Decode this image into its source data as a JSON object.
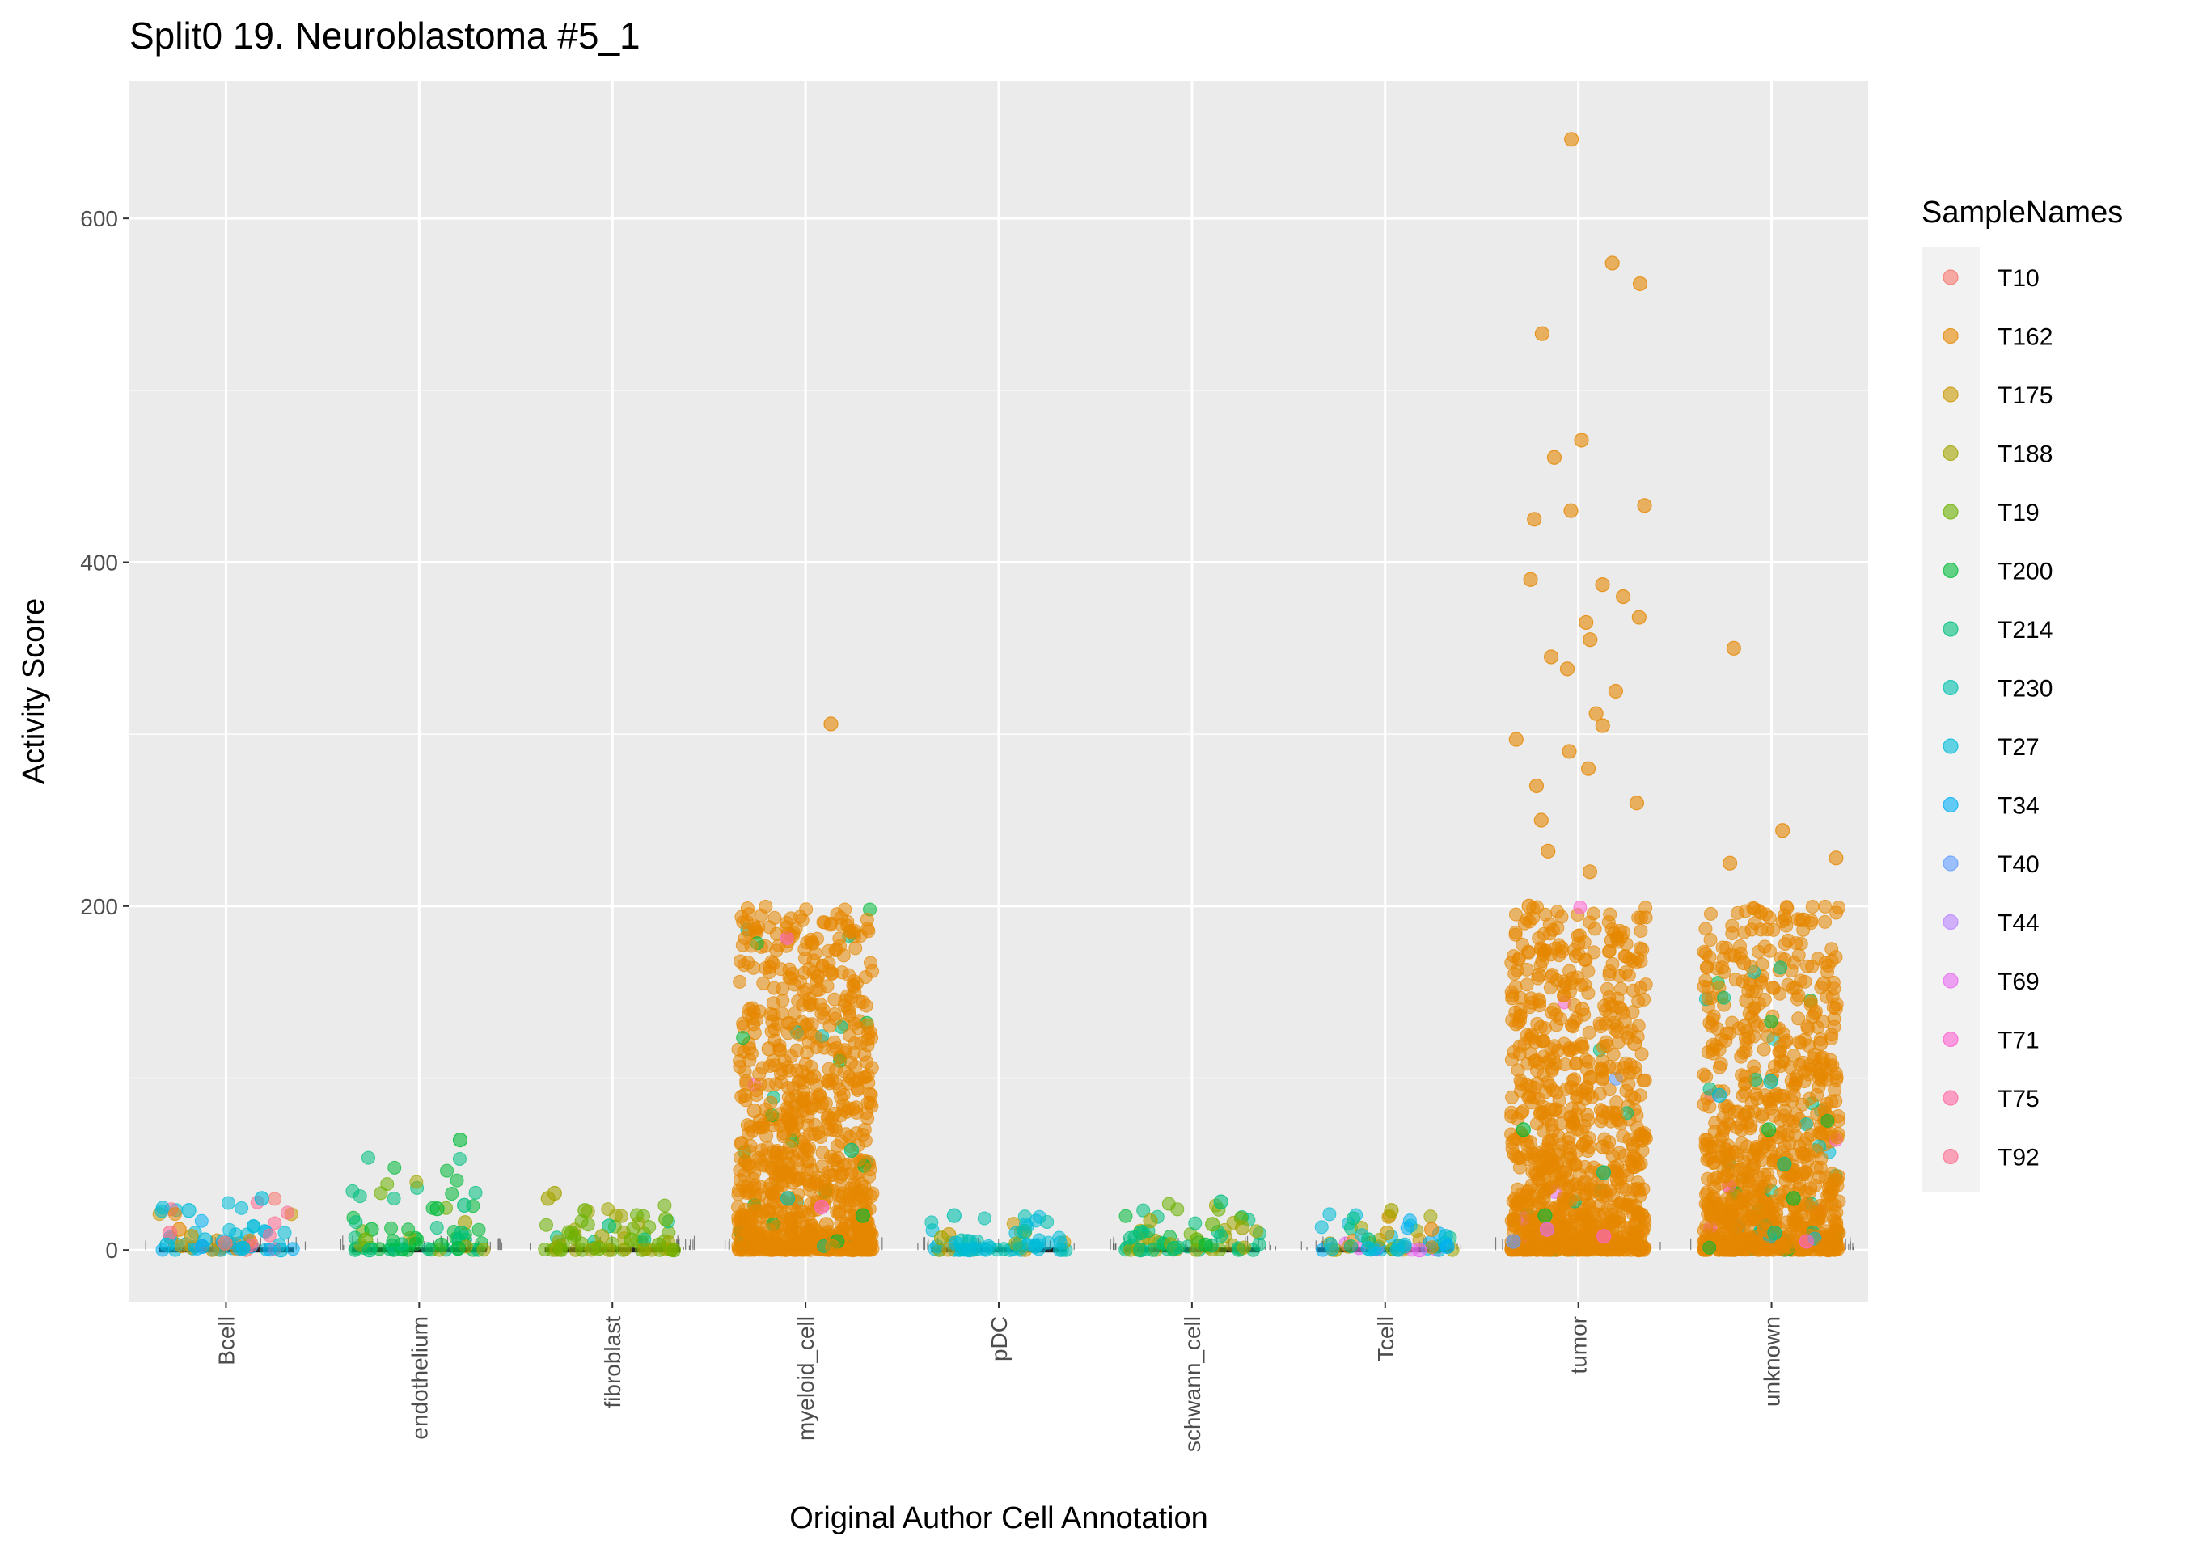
{
  "chart_data": {
    "type": "scatter",
    "title": "Split0 19. Neuroblastoma #5_1",
    "xlabel": "Original Author Cell Annotation",
    "ylabel": "Activity Score",
    "categories": [
      "Bcell",
      "endothelium",
      "fibroblast",
      "myeloid_cell",
      "pDC",
      "schwann_cell",
      "Tcell",
      "tumor",
      "unknown"
    ],
    "ylim": [
      -30,
      680
    ],
    "yticks": [
      0,
      200,
      400,
      600
    ],
    "grid": true,
    "legend": {
      "title": "SampleNames",
      "position": "right",
      "entries": [
        {
          "name": "T10",
          "color": "#F8766D"
        },
        {
          "name": "T162",
          "color": "#E58700"
        },
        {
          "name": "T175",
          "color": "#C99800"
        },
        {
          "name": "T188",
          "color": "#A3A500"
        },
        {
          "name": "T19",
          "color": "#6BB100"
        },
        {
          "name": "T200",
          "color": "#00BA38"
        },
        {
          "name": "T214",
          "color": "#00BF7D"
        },
        {
          "name": "T230",
          "color": "#00C0AF"
        },
        {
          "name": "T27",
          "color": "#00BCD8"
        },
        {
          "name": "T34",
          "color": "#00B0F6"
        },
        {
          "name": "T40",
          "color": "#619CFF"
        },
        {
          "name": "T44",
          "color": "#B983FF"
        },
        {
          "name": "T69",
          "color": "#E76BF3"
        },
        {
          "name": "T71",
          "color": "#FD61D1"
        },
        {
          "name": "T75",
          "color": "#FF67A4"
        },
        {
          "name": "T92",
          "color": "#FF6C91"
        }
      ]
    },
    "series": [
      {
        "category": "Bcell",
        "points": [
          {
            "y": 30,
            "sample": "T27"
          },
          {
            "y": 23,
            "sample": "T27"
          },
          {
            "y": 12,
            "sample": "T162"
          },
          {
            "y": 10,
            "sample": "T92"
          },
          {
            "y": 8,
            "sample": "T175"
          },
          {
            "y": 6,
            "sample": "T27"
          },
          {
            "y": 5,
            "sample": "T34"
          },
          {
            "y": 4,
            "sample": "T10"
          },
          {
            "y": 3,
            "sample": "T27"
          },
          {
            "y": 2,
            "sample": "T34"
          },
          {
            "y": 1,
            "sample": "T27"
          },
          {
            "y": 0,
            "sample": "T27"
          }
        ]
      },
      {
        "category": "endothelium",
        "points": [
          {
            "y": 64,
            "sample": "T200"
          },
          {
            "y": 26,
            "sample": "T214"
          },
          {
            "y": 24,
            "sample": "T200"
          },
          {
            "y": 16,
            "sample": "T188"
          },
          {
            "y": 12,
            "sample": "T200"
          },
          {
            "y": 10,
            "sample": "T214"
          },
          {
            "y": 6,
            "sample": "T19"
          },
          {
            "y": 3,
            "sample": "T200"
          },
          {
            "y": 1,
            "sample": "T200"
          },
          {
            "y": 0,
            "sample": "T214"
          }
        ]
      },
      {
        "category": "fibroblast",
        "points": [
          {
            "y": 33,
            "sample": "T188"
          },
          {
            "y": 30,
            "sample": "T188"
          },
          {
            "y": 23,
            "sample": "T19"
          },
          {
            "y": 18,
            "sample": "T19"
          },
          {
            "y": 14,
            "sample": "T214"
          },
          {
            "y": 10,
            "sample": "T19"
          },
          {
            "y": 8,
            "sample": "T188"
          },
          {
            "y": 6,
            "sample": "T19"
          },
          {
            "y": 3,
            "sample": "T19"
          },
          {
            "y": 1,
            "sample": "T19"
          },
          {
            "y": 0,
            "sample": "T19"
          }
        ]
      },
      {
        "category": "myeloid_cell",
        "points": [
          {
            "y": 306,
            "sample": "T162"
          },
          {
            "y": 117,
            "sample": "T162"
          },
          {
            "y": 101,
            "sample": "T162"
          },
          {
            "y": 90,
            "sample": "T162"
          },
          {
            "y": 81,
            "sample": "T162"
          },
          {
            "y": 75,
            "sample": "T162"
          },
          {
            "y": 68,
            "sample": "T162"
          },
          {
            "y": 60,
            "sample": "T162"
          },
          {
            "y": 58,
            "sample": "T214"
          },
          {
            "y": 50,
            "sample": "T162"
          },
          {
            "y": 44,
            "sample": "T162"
          },
          {
            "y": 38,
            "sample": "T162"
          },
          {
            "y": 30,
            "sample": "T230"
          },
          {
            "y": 25,
            "sample": "T71"
          },
          {
            "y": 20,
            "sample": "T200"
          },
          {
            "y": 15,
            "sample": "T162"
          },
          {
            "y": 10,
            "sample": "T162"
          },
          {
            "y": 5,
            "sample": "T200"
          },
          {
            "y": 2,
            "sample": "T162"
          },
          {
            "y": 0,
            "sample": "T162"
          }
        ]
      },
      {
        "category": "pDC",
        "points": [
          {
            "y": 20,
            "sample": "T230"
          },
          {
            "y": 11,
            "sample": "T230"
          },
          {
            "y": 9,
            "sample": "T175"
          },
          {
            "y": 7,
            "sample": "T188"
          },
          {
            "y": 4,
            "sample": "T27"
          },
          {
            "y": 2,
            "sample": "T27"
          },
          {
            "y": 0,
            "sample": "T27"
          }
        ]
      },
      {
        "category": "schwann_cell",
        "points": [
          {
            "y": 28,
            "sample": "T214"
          },
          {
            "y": 17,
            "sample": "T188"
          },
          {
            "y": 15,
            "sample": "T19"
          },
          {
            "y": 13,
            "sample": "T188"
          },
          {
            "y": 10,
            "sample": "T214"
          },
          {
            "y": 6,
            "sample": "T19"
          },
          {
            "y": 3,
            "sample": "T200"
          },
          {
            "y": 1,
            "sample": "T214"
          },
          {
            "y": 0,
            "sample": "T214"
          }
        ]
      },
      {
        "category": "Tcell",
        "points": [
          {
            "y": 23,
            "sample": "T188"
          },
          {
            "y": 12,
            "sample": "T162"
          },
          {
            "y": 10,
            "sample": "T175"
          },
          {
            "y": 8,
            "sample": "T27"
          },
          {
            "y": 6,
            "sample": "T214"
          },
          {
            "y": 4,
            "sample": "T27"
          },
          {
            "y": 2,
            "sample": "T34"
          },
          {
            "y": 1,
            "sample": "T27"
          },
          {
            "y": 0,
            "sample": "T69"
          }
        ]
      },
      {
        "category": "tumor",
        "points": [
          {
            "y": 646,
            "sample": "T162"
          },
          {
            "y": 574,
            "sample": "T162"
          },
          {
            "y": 562,
            "sample": "T162"
          },
          {
            "y": 533,
            "sample": "T162"
          },
          {
            "y": 471,
            "sample": "T162"
          },
          {
            "y": 461,
            "sample": "T162"
          },
          {
            "y": 433,
            "sample": "T162"
          },
          {
            "y": 430,
            "sample": "T162"
          },
          {
            "y": 425,
            "sample": "T162"
          },
          {
            "y": 390,
            "sample": "T162"
          },
          {
            "y": 387,
            "sample": "T162"
          },
          {
            "y": 380,
            "sample": "T162"
          },
          {
            "y": 368,
            "sample": "T162"
          },
          {
            "y": 365,
            "sample": "T162"
          },
          {
            "y": 355,
            "sample": "T162"
          },
          {
            "y": 345,
            "sample": "T162"
          },
          {
            "y": 338,
            "sample": "T162"
          },
          {
            "y": 325,
            "sample": "T162"
          },
          {
            "y": 312,
            "sample": "T162"
          },
          {
            "y": 305,
            "sample": "T162"
          },
          {
            "y": 297,
            "sample": "T162"
          },
          {
            "y": 290,
            "sample": "T162"
          },
          {
            "y": 280,
            "sample": "T162"
          },
          {
            "y": 270,
            "sample": "T162"
          },
          {
            "y": 260,
            "sample": "T162"
          },
          {
            "y": 250,
            "sample": "T162"
          },
          {
            "y": 232,
            "sample": "T162"
          },
          {
            "y": 220,
            "sample": "T162"
          },
          {
            "y": 200,
            "sample": "T162"
          },
          {
            "y": 180,
            "sample": "T162"
          },
          {
            "y": 160,
            "sample": "T162"
          },
          {
            "y": 140,
            "sample": "T162"
          },
          {
            "y": 120,
            "sample": "T162"
          },
          {
            "y": 100,
            "sample": "T162"
          },
          {
            "y": 80,
            "sample": "T162"
          },
          {
            "y": 70,
            "sample": "T200"
          },
          {
            "y": 60,
            "sample": "T162"
          },
          {
            "y": 45,
            "sample": "T214"
          },
          {
            "y": 30,
            "sample": "T162"
          },
          {
            "y": 20,
            "sample": "T200"
          },
          {
            "y": 12,
            "sample": "T69"
          },
          {
            "y": 8,
            "sample": "T71"
          },
          {
            "y": 5,
            "sample": "T40"
          },
          {
            "y": 2,
            "sample": "T162"
          },
          {
            "y": 0,
            "sample": "T162"
          }
        ]
      },
      {
        "category": "unknown",
        "points": [
          {
            "y": 350,
            "sample": "T162"
          },
          {
            "y": 244,
            "sample": "T162"
          },
          {
            "y": 228,
            "sample": "T162"
          },
          {
            "y": 225,
            "sample": "T162"
          },
          {
            "y": 192,
            "sample": "T162"
          },
          {
            "y": 167,
            "sample": "T162"
          },
          {
            "y": 155,
            "sample": "T162"
          },
          {
            "y": 145,
            "sample": "T162"
          },
          {
            "y": 130,
            "sample": "T162"
          },
          {
            "y": 120,
            "sample": "T162"
          },
          {
            "y": 110,
            "sample": "T162"
          },
          {
            "y": 98,
            "sample": "T230"
          },
          {
            "y": 90,
            "sample": "T27"
          },
          {
            "y": 80,
            "sample": "T162"
          },
          {
            "y": 70,
            "sample": "T200"
          },
          {
            "y": 60,
            "sample": "T162"
          },
          {
            "y": 50,
            "sample": "T214"
          },
          {
            "y": 40,
            "sample": "T162"
          },
          {
            "y": 30,
            "sample": "T200"
          },
          {
            "y": 20,
            "sample": "T162"
          },
          {
            "y": 10,
            "sample": "T214"
          },
          {
            "y": 5,
            "sample": "T71"
          },
          {
            "y": 2,
            "sample": "T162"
          },
          {
            "y": 0,
            "sample": "T162"
          }
        ]
      }
    ]
  }
}
